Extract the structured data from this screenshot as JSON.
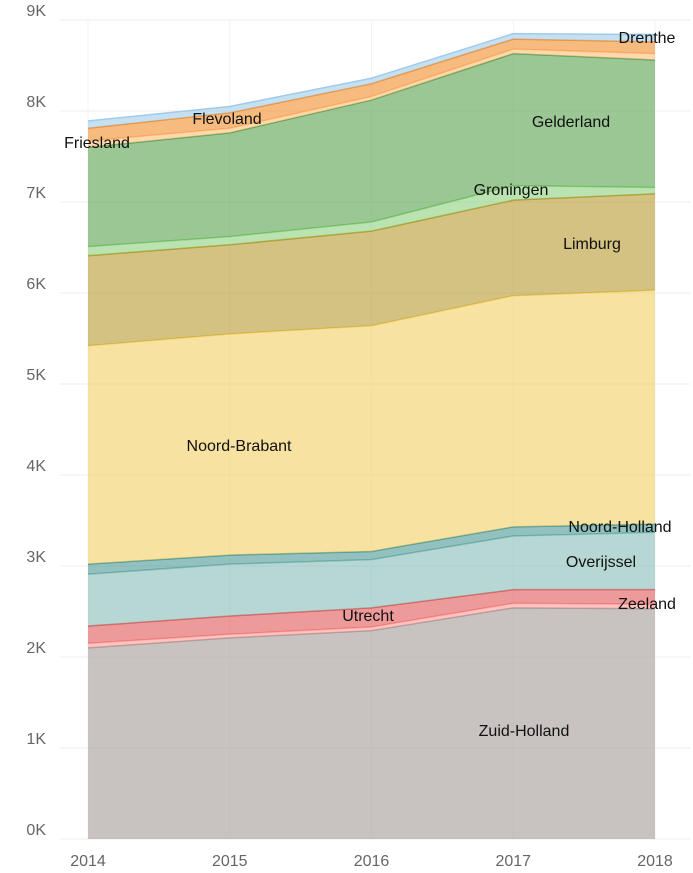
{
  "chart_data": {
    "type": "stacked-area",
    "categories": [
      "2014",
      "2015",
      "2016",
      "2017",
      "2018"
    ],
    "ylim": [
      0,
      9000
    ],
    "yticks": [
      {
        "value": 0,
        "label": "0K"
      },
      {
        "value": 1000,
        "label": "1K"
      },
      {
        "value": 2000,
        "label": "2K"
      },
      {
        "value": 3000,
        "label": "3K"
      },
      {
        "value": 4000,
        "label": "4K"
      },
      {
        "value": 5000,
        "label": "5K"
      },
      {
        "value": 6000,
        "label": "6K"
      },
      {
        "value": 7000,
        "label": "7K"
      },
      {
        "value": 8000,
        "label": "8K"
      },
      {
        "value": 9000,
        "label": "9K"
      }
    ],
    "grid": true,
    "series": [
      {
        "name": "Zuid-Holland",
        "color": "#a39b98",
        "values": [
          2100,
          2210,
          2290,
          2540,
          2530
        ]
      },
      {
        "name": "Zeeland",
        "color": "#ff9d9a",
        "values": [
          50,
          40,
          40,
          50,
          50
        ]
      },
      {
        "name": "Utrecht",
        "color": "#e15759",
        "values": [
          190,
          200,
          210,
          150,
          160
        ]
      },
      {
        "name": "Overijssel",
        "color": "#86bcb6",
        "values": [
          570,
          570,
          530,
          590,
          630
        ]
      },
      {
        "name": "Noord-Holland",
        "color": "#499894",
        "values": [
          110,
          100,
          90,
          100,
          90
        ]
      },
      {
        "name": "Noord-Brabant",
        "color": "#f1ce63",
        "values": [
          2400,
          2430,
          2480,
          2540,
          2570
        ]
      },
      {
        "name": "Limburg",
        "color": "#b6992d",
        "values": [
          990,
          980,
          1040,
          1050,
          1060
        ]
      },
      {
        "name": "Groningen",
        "color": "#8cd17d",
        "values": [
          100,
          90,
          100,
          160,
          70
        ]
      },
      {
        "name": "Gelderland",
        "color": "#59a14f",
        "values": [
          1090,
          1140,
          1340,
          1450,
          1400
        ]
      },
      {
        "name": "Friesland",
        "color": "#ffbe7d",
        "values": [
          70,
          50,
          40,
          50,
          70
        ]
      },
      {
        "name": "Flevoland",
        "color": "#f28e2b",
        "values": [
          140,
          170,
          140,
          110,
          130
        ]
      },
      {
        "name": "Drenthe",
        "color": "#a0cbe8",
        "values": [
          80,
          70,
          60,
          60,
          80
        ]
      }
    ]
  }
}
